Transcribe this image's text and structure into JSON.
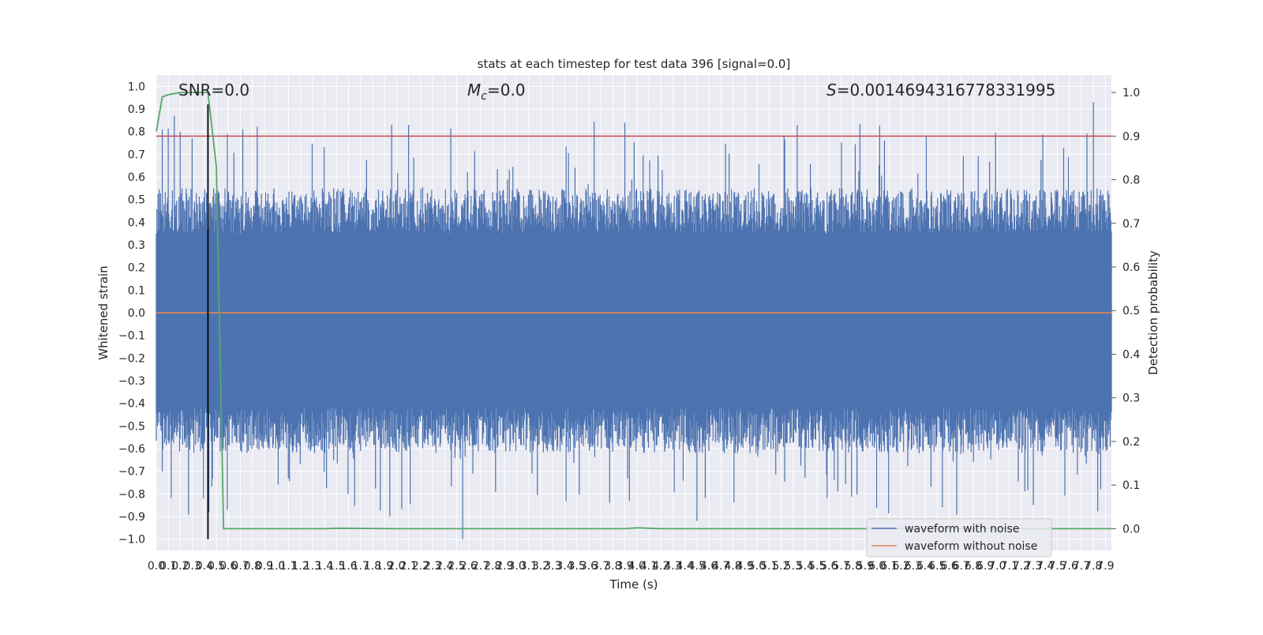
{
  "chart_data": {
    "type": "line",
    "title": "stats at each timestep for test data 396 [signal=0.0]",
    "xlabel": "Time (s)",
    "ylabel_left": "Whitened strain",
    "ylabel_right": "Detection probability",
    "xlim": [
      0.0,
      7.95
    ],
    "ylim_left": [
      -1.05,
      1.05
    ],
    "ylim_right": [
      -0.05,
      1.04
    ],
    "x_ticks": [
      "0.0",
      "0.1",
      "0.2",
      "0.3",
      "0.4",
      "0.5",
      "0.6",
      "0.7",
      "0.8",
      "0.9",
      "1.0",
      "1.1",
      "1.2",
      "1.3",
      "1.4",
      "1.5",
      "1.6",
      "1.7",
      "1.8",
      "1.9",
      "2.0",
      "2.1",
      "2.2",
      "2.3",
      "2.4",
      "2.5",
      "2.6",
      "2.7",
      "2.8",
      "2.9",
      "3.0",
      "3.1",
      "3.2",
      "3.3",
      "3.4",
      "3.5",
      "3.6",
      "3.7",
      "3.8",
      "3.9",
      "4.0",
      "4.1",
      "4.2",
      "4.3",
      "4.4",
      "4.5",
      "4.6",
      "4.7",
      "4.8",
      "4.9",
      "5.0",
      "5.1",
      "5.2",
      "5.3",
      "5.4",
      "5.5",
      "5.6",
      "5.7",
      "5.8",
      "5.9",
      "6.0",
      "6.1",
      "6.2",
      "6.3",
      "6.4",
      "6.5",
      "6.6",
      "6.7",
      "6.8",
      "6.9",
      "7.0",
      "7.1",
      "7.2",
      "7.3",
      "7.4",
      "7.5",
      "7.6",
      "7.7",
      "7.8",
      "7.9"
    ],
    "y_ticks_left": [
      "1.0",
      "0.9",
      "0.8",
      "0.7",
      "0.6",
      "0.5",
      "0.4",
      "0.3",
      "0.2",
      "0.1",
      "0.0",
      "−0.1",
      "−0.2",
      "−0.3",
      "−0.4",
      "−0.5",
      "−0.6",
      "−0.7",
      "−0.8",
      "−0.9",
      "−1.0"
    ],
    "y_ticks_right": [
      "1.0",
      "0.9",
      "0.8",
      "0.7",
      "0.6",
      "0.5",
      "0.4",
      "0.3",
      "0.2",
      "0.1",
      "0.0"
    ],
    "annotations": {
      "snr": "SNR=0.0",
      "mc_symbol": "M",
      "mc_sub": "c",
      "mc_value": "=0.0",
      "s_symbol": "S",
      "s_value": "=0.0014694316778331995"
    },
    "grid": true,
    "legend_position": "lower-right",
    "series": [
      {
        "name": "waveform with noise",
        "axis": "left",
        "color": "#4c72b0",
        "description_values": "noise samples, approx amplitude range -1.0 to 0.93",
        "envelope": {
          "x": [
            0.0,
            7.95
          ],
          "core_low": -0.42,
          "core_high": 0.35,
          "max_peak": 0.93,
          "min_peak": -1.0
        }
      },
      {
        "name": "waveform without noise",
        "axis": "left",
        "color": "#dd8452",
        "x": [
          0.0,
          7.95
        ],
        "values": [
          0.0,
          0.0
        ]
      },
      {
        "axis": "right",
        "color": "#55a868",
        "x": [
          0.0,
          0.05,
          0.1,
          0.2,
          0.3,
          0.43,
          0.5,
          0.56,
          1.0,
          1.4,
          1.5,
          2.0,
          3.0,
          3.9,
          4.0,
          4.1,
          4.2,
          5.0,
          6.0,
          7.0,
          7.95
        ],
        "values": [
          0.91,
          0.99,
          0.995,
          1.0,
          1.0,
          1.0,
          0.83,
          0.0,
          0.0,
          0.0,
          0.001,
          0.0,
          0.0,
          0.0,
          0.002,
          0.001,
          0.0,
          0.0,
          0.0,
          0.0,
          0.0
        ]
      },
      {
        "axis": "right",
        "color": "#c44e52",
        "type": "threshold",
        "values": [
          0.9,
          0.9
        ]
      },
      {
        "axis": "left",
        "color": "#000000",
        "type": "vline",
        "x": 0.43,
        "values": [
          -1.0,
          0.92
        ]
      }
    ],
    "colors": {
      "plot_background": "#eaeaf2",
      "grid": "#ffffff",
      "noise": "#4c72b0",
      "clean": "#dd8452",
      "probability": "#55a868",
      "threshold": "#c44e52",
      "marker": "#000000"
    }
  }
}
